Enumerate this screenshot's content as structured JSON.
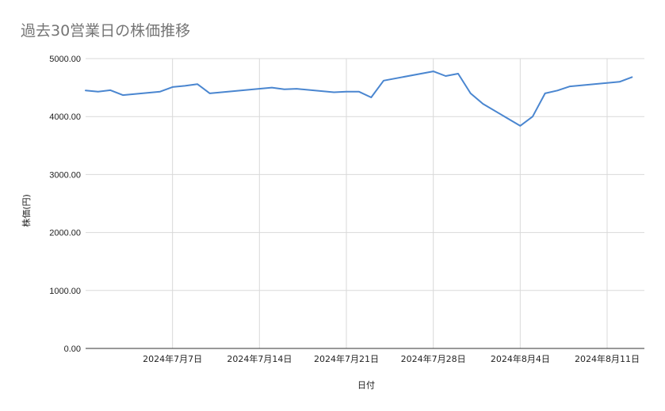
{
  "chart_data": {
    "type": "line",
    "title": "過去30営業日の株価推移",
    "xlabel": "日付",
    "ylabel": "株価(円)",
    "ylim": [
      0,
      5000
    ],
    "yticks": [
      "0.00",
      "1000.00",
      "2000.00",
      "3000.00",
      "4000.00",
      "5000.00"
    ],
    "xlim": [
      "2024-06-30",
      "2024-08-14"
    ],
    "xticks": [
      {
        "date": "2024-07-07",
        "label": "2024年7月7日"
      },
      {
        "date": "2024-07-14",
        "label": "2024年7月14日"
      },
      {
        "date": "2024-07-21",
        "label": "2024年7月21日"
      },
      {
        "date": "2024-07-28",
        "label": "2024年7月28日"
      },
      {
        "date": "2024-08-04",
        "label": "2024年8月4日"
      },
      {
        "date": "2024-08-11",
        "label": "2024年8月11日"
      }
    ],
    "grid": true,
    "line_color": "#4a86d0",
    "series": [
      {
        "points": [
          {
            "x": "2024-06-30",
            "y": 4450
          },
          {
            "x": "2024-07-01",
            "y": 4430
          },
          {
            "x": "2024-07-02",
            "y": 4455
          },
          {
            "x": "2024-07-03",
            "y": 4370
          },
          {
            "x": "2024-07-06",
            "y": 4430
          },
          {
            "x": "2024-07-07",
            "y": 4510
          },
          {
            "x": "2024-07-08",
            "y": 4530
          },
          {
            "x": "2024-07-09",
            "y": 4560
          },
          {
            "x": "2024-07-10",
            "y": 4400
          },
          {
            "x": "2024-07-15",
            "y": 4500
          },
          {
            "x": "2024-07-16",
            "y": 4470
          },
          {
            "x": "2024-07-17",
            "y": 4480
          },
          {
            "x": "2024-07-20",
            "y": 4420
          },
          {
            "x": "2024-07-21",
            "y": 4430
          },
          {
            "x": "2024-07-22",
            "y": 4430
          },
          {
            "x": "2024-07-23",
            "y": 4330
          },
          {
            "x": "2024-07-24",
            "y": 4620
          },
          {
            "x": "2024-07-28",
            "y": 4780
          },
          {
            "x": "2024-07-29",
            "y": 4700
          },
          {
            "x": "2024-07-30",
            "y": 4740
          },
          {
            "x": "2024-07-31",
            "y": 4400
          },
          {
            "x": "2024-08-01",
            "y": 4220
          },
          {
            "x": "2024-08-04",
            "y": 3840
          },
          {
            "x": "2024-08-05",
            "y": 4000
          },
          {
            "x": "2024-08-06",
            "y": 4400
          },
          {
            "x": "2024-08-07",
            "y": 4450
          },
          {
            "x": "2024-08-08",
            "y": 4520
          },
          {
            "x": "2024-08-12",
            "y": 4600
          },
          {
            "x": "2024-08-13",
            "y": 4680
          }
        ]
      }
    ]
  }
}
